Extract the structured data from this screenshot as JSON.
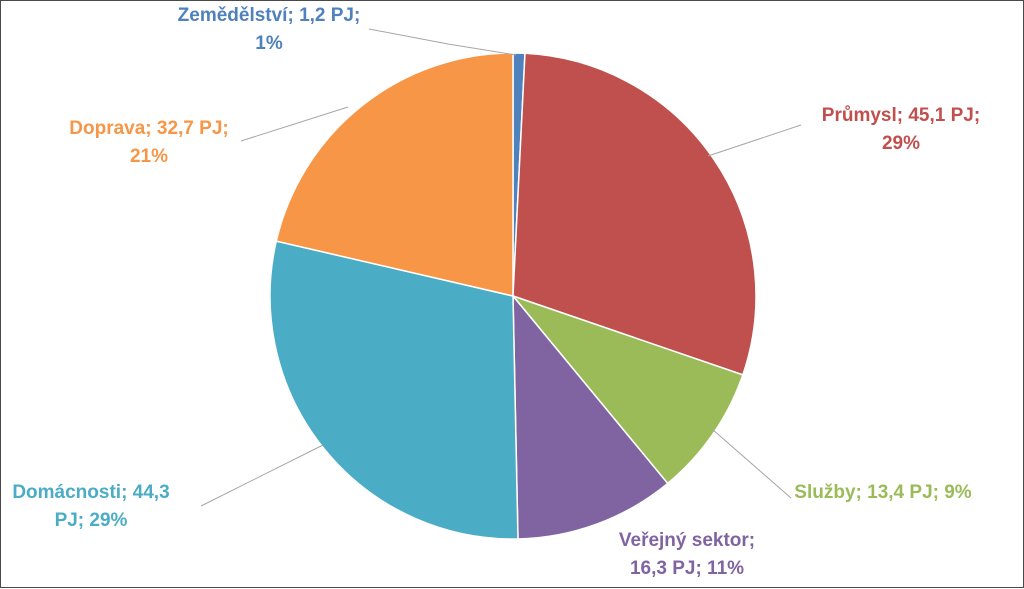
{
  "chart_data": {
    "type": "pie",
    "title": "",
    "slices": [
      {
        "name": "Zemědělství",
        "value": 1.2,
        "unit": "PJ",
        "percent_label": "1%",
        "color": "#4f81bd",
        "label_lines": [
          "Zemědělství; 1,2 PJ;",
          "1%"
        ]
      },
      {
        "name": "Průmysl",
        "value": 45.1,
        "unit": "PJ",
        "percent_label": "29%",
        "color": "#c0504d",
        "label_lines": [
          "Průmysl; 45,1 PJ;",
          "29%"
        ]
      },
      {
        "name": "Služby",
        "value": 13.4,
        "unit": "PJ",
        "percent_label": "9%",
        "color": "#9bbb59",
        "label_lines": [
          "Služby; 13,4 PJ; 9%"
        ]
      },
      {
        "name": "Veřejný sektor",
        "value": 16.3,
        "unit": "PJ",
        "percent_label": "11%",
        "color": "#8064a2",
        "label_lines": [
          "Veřejný sektor;",
          "16,3 PJ; 11%"
        ]
      },
      {
        "name": "Domácnosti",
        "value": 44.3,
        "unit": "PJ",
        "percent_label": "29%",
        "color": "#4bacc6",
        "label_lines": [
          "Domácnosti; 44,3",
          "PJ; 29%"
        ]
      },
      {
        "name": "Doprava",
        "value": 32.7,
        "unit": "PJ",
        "percent_label": "21%",
        "color": "#f79646",
        "label_lines": [
          "Doprava; 32,7 PJ;",
          "21%"
        ]
      }
    ],
    "legend": "none",
    "start_angle": "12 o'clock, clockwise"
  }
}
